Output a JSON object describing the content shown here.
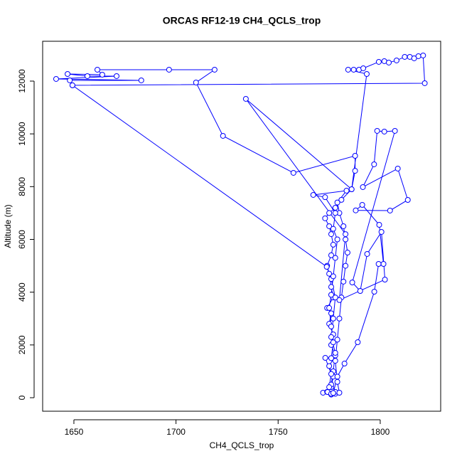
{
  "chart_data": {
    "type": "line",
    "markers": "circle",
    "title": "ORCAS RF12-19 CH4_QCLS_trop",
    "x_label": "CH4_QCLS_trop",
    "y_label": "Altitude (m)",
    "color": "#0000ff",
    "xlim": [
      1634.7,
      1829.6
    ],
    "ylim": [
      -512,
      13510
    ],
    "xticks": [
      1650,
      1700,
      1750,
      1800
    ],
    "yticks": [
      0,
      2000,
      4000,
      6000,
      8000,
      10000,
      12000
    ],
    "x": [
      1776,
      1778,
      1772,
      1774,
      1776,
      1777,
      1775,
      1778,
      1776,
      1777,
      1775,
      1776,
      1774,
      1777,
      1776,
      1775,
      1774,
      1776,
      1777,
      1776,
      1775,
      1773,
      1775,
      1778,
      1781,
      1786,
      1787.7,
      1787.7,
      1757.5,
      1723,
      1709.8,
      1718.9,
      1696.6,
      1661.5,
      1663.9,
      1646.9,
      1656.6,
      1670.9,
      1641.3,
      1683,
      1648,
      1649.3,
      1773.8,
      1776,
      1778,
      1777,
      1776,
      1778,
      1777,
      1776,
      1778,
      1780,
      1779,
      1778,
      1779,
      1780,
      1781,
      1782,
      1783,
      1784,
      1783,
      1782,
      1780,
      1779,
      1783.5,
      1767.2,
      1773,
      1778,
      1777,
      1779,
      1778,
      1777,
      1776,
      1775,
      1776,
      1777,
      1776,
      1773.1,
      1776,
      1775,
      1774.2,
      1776,
      1777,
      1779,
      1782.5,
      1789,
      1797.1,
      1799.2,
      1801.6,
      1799.5,
      1791.2,
      1788,
      1804.8,
      1813.5,
      1808.6,
      1791.5,
      1797,
      1798.5,
      1802,
      1807.2,
      1786.3,
      1790.2,
      1793.6,
      1800.6,
      1802.3,
      1780,
      1783,
      1734.2,
      1786,
      1793.4,
      1784.3,
      1787,
      1789.6,
      1791.7,
      1799.3,
      1802,
      1804.2,
      1808,
      1812,
      1814.5,
      1816.6,
      1818.7,
      1821,
      1821.8,
      1649.3
    ],
    "values": [
      120,
      150,
      190,
      220,
      400,
      800,
      1200,
      1600,
      2000,
      2400,
      2800,
      3200,
      3400,
      3800,
      4200,
      4700,
      5000,
      5400,
      5800,
      6200,
      6500,
      6800,
      7000,
      7200,
      7500,
      7900,
      8600,
      9169,
      8522,
      9925,
      11947,
      12432,
      12432,
      12432,
      12244,
      12270,
      12190,
      12190,
      12082,
      12028,
      12028,
      11840,
      4962,
      4500,
      3800,
      3000,
      2300,
      1700,
      1000,
      500,
      220,
      189,
      600,
      1400,
      2200,
      3000,
      3800,
      4400,
      5000,
      5500,
      6000,
      6500,
      7000,
      7400,
      7848,
      7686,
      7600,
      7000,
      6400,
      6000,
      5300,
      4600,
      3900,
      3400,
      2700,
      2100,
      1500,
      1510,
      900,
      400,
      216,
      150,
      180,
      800,
      1294,
      2104,
      4018,
      5070,
      5070,
      6553,
      7308,
      7100,
      7093,
      7497,
      8684,
      7983,
      8846,
      10113,
      10086,
      10113,
      4369,
      4045,
      5448,
      6284,
      4477,
      3700,
      6200,
      11327,
      7900,
      12270,
      12432,
      12432,
      12432,
      12486,
      12729,
      12756,
      12702,
      12783,
      12918,
      12918,
      12864,
      12945,
      12972,
      11920,
      11840
    ]
  }
}
